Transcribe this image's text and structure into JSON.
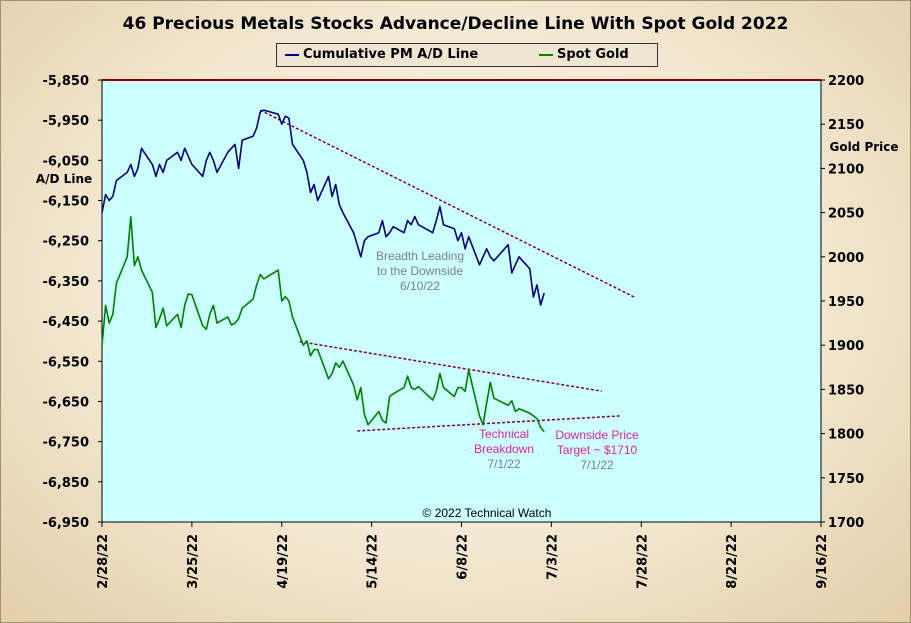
{
  "chart_data": {
    "type": "line",
    "title": "46 Precious Metals Stocks Advance/Decline Line With Spot Gold 2022",
    "legend_position": "top-center",
    "grid": false,
    "x_tick_labels": [
      "2/28/22",
      "3/25/22",
      "4/19/22",
      "5/14/22",
      "6/8/22",
      "7/3/22",
      "7/28/22",
      "8/22/22",
      "9/16/22"
    ],
    "x_range": [
      "2022-02-28",
      "2022-09-16"
    ],
    "y_left": {
      "label": "A/D Line",
      "range": [
        -6950,
        -5850
      ],
      "ticks": [
        "-5,850",
        "-5,950",
        "-6,050",
        "-6,150",
        "-6,250",
        "-6,350",
        "-6,450",
        "-6,550",
        "-6,650",
        "-6,750",
        "-6,850",
        "-6,950"
      ]
    },
    "y_right": {
      "label": "Gold Price",
      "range": [
        1700,
        2200
      ],
      "ticks": [
        "2200",
        "2150",
        "2100",
        "2050",
        "2000",
        "1950",
        "1900",
        "1850",
        "1800",
        "1750",
        "1700"
      ]
    },
    "series": [
      {
        "name": "Cumulative PM A/D Line",
        "axis": "left",
        "color": "#000080",
        "points": [
          [
            "2022-02-28",
            -6180
          ],
          [
            "2022-03-01",
            -6135
          ],
          [
            "2022-03-02",
            -6150
          ],
          [
            "2022-03-03",
            -6140
          ],
          [
            "2022-03-04",
            -6100
          ],
          [
            "2022-03-07",
            -6080
          ],
          [
            "2022-03-08",
            -6060
          ],
          [
            "2022-03-09",
            -6090
          ],
          [
            "2022-03-10",
            -6070
          ],
          [
            "2022-03-11",
            -6020
          ],
          [
            "2022-03-14",
            -6060
          ],
          [
            "2022-03-15",
            -6090
          ],
          [
            "2022-03-16",
            -6060
          ],
          [
            "2022-03-17",
            -6080
          ],
          [
            "2022-03-18",
            -6050
          ],
          [
            "2022-03-21",
            -6030
          ],
          [
            "2022-03-22",
            -6050
          ],
          [
            "2022-03-23",
            -6020
          ],
          [
            "2022-03-24",
            -6040
          ],
          [
            "2022-03-25",
            -6060
          ],
          [
            "2022-03-28",
            -6090
          ],
          [
            "2022-03-29",
            -6050
          ],
          [
            "2022-03-30",
            -6030
          ],
          [
            "2022-03-31",
            -6050
          ],
          [
            "2022-04-01",
            -6080
          ],
          [
            "2022-04-04",
            -6030
          ],
          [
            "2022-04-05",
            -6020
          ],
          [
            "2022-04-06",
            -6010
          ],
          [
            "2022-04-07",
            -6070
          ],
          [
            "2022-04-08",
            -6000
          ],
          [
            "2022-04-11",
            -5990
          ],
          [
            "2022-04-12",
            -5970
          ],
          [
            "2022-04-13",
            -5930
          ],
          [
            "2022-04-14",
            -5925
          ],
          [
            "2022-04-18",
            -5935
          ],
          [
            "2022-04-19",
            -5960
          ],
          [
            "2022-04-20",
            -5940
          ],
          [
            "2022-04-21",
            -5945
          ],
          [
            "2022-04-22",
            -6010
          ],
          [
            "2022-04-25",
            -6050
          ],
          [
            "2022-04-26",
            -6080
          ],
          [
            "2022-04-27",
            -6130
          ],
          [
            "2022-04-28",
            -6110
          ],
          [
            "2022-04-29",
            -6150
          ],
          [
            "2022-05-02",
            -6090
          ],
          [
            "2022-05-03",
            -6140
          ],
          [
            "2022-05-04",
            -6110
          ],
          [
            "2022-05-05",
            -6160
          ],
          [
            "2022-05-06",
            -6180
          ],
          [
            "2022-05-09",
            -6230
          ],
          [
            "2022-05-10",
            -6260
          ],
          [
            "2022-05-11",
            -6290
          ],
          [
            "2022-05-12",
            -6250
          ],
          [
            "2022-05-13",
            -6240
          ],
          [
            "2022-05-16",
            -6230
          ],
          [
            "2022-05-17",
            -6200
          ],
          [
            "2022-05-18",
            -6240
          ],
          [
            "2022-05-19",
            -6230
          ],
          [
            "2022-05-20",
            -6215
          ],
          [
            "2022-05-23",
            -6230
          ],
          [
            "2022-05-24",
            -6200
          ],
          [
            "2022-05-25",
            -6210
          ],
          [
            "2022-05-26",
            -6190
          ],
          [
            "2022-05-27",
            -6210
          ],
          [
            "2022-05-31",
            -6230
          ],
          [
            "2022-06-01",
            -6200
          ],
          [
            "2022-06-02",
            -6165
          ],
          [
            "2022-06-03",
            -6210
          ],
          [
            "2022-06-06",
            -6220
          ],
          [
            "2022-06-07",
            -6250
          ],
          [
            "2022-06-08",
            -6230
          ],
          [
            "2022-06-09",
            -6270
          ],
          [
            "2022-06-10",
            -6240
          ],
          [
            "2022-06-13",
            -6310
          ],
          [
            "2022-06-14",
            -6290
          ],
          [
            "2022-06-15",
            -6270
          ],
          [
            "2022-06-16",
            -6290
          ],
          [
            "2022-06-17",
            -6300
          ],
          [
            "2022-06-21",
            -6260
          ],
          [
            "2022-06-22",
            -6330
          ],
          [
            "2022-06-23",
            -6310
          ],
          [
            "2022-06-24",
            -6290
          ],
          [
            "2022-06-27",
            -6320
          ],
          [
            "2022-06-28",
            -6390
          ],
          [
            "2022-06-29",
            -6360
          ],
          [
            "2022-06-30",
            -6410
          ],
          [
            "2022-07-01",
            -6380
          ]
        ]
      },
      {
        "name": "Spot Gold",
        "axis": "right",
        "color": "#008000",
        "points": [
          [
            "2022-02-28",
            1900
          ],
          [
            "2022-03-01",
            1945
          ],
          [
            "2022-03-02",
            1925
          ],
          [
            "2022-03-03",
            1935
          ],
          [
            "2022-03-04",
            1970
          ],
          [
            "2022-03-07",
            2000
          ],
          [
            "2022-03-08",
            2045
          ],
          [
            "2022-03-09",
            1990
          ],
          [
            "2022-03-10",
            2000
          ],
          [
            "2022-03-11",
            1985
          ],
          [
            "2022-03-14",
            1960
          ],
          [
            "2022-03-15",
            1920
          ],
          [
            "2022-03-16",
            1930
          ],
          [
            "2022-03-17",
            1942
          ],
          [
            "2022-03-18",
            1922
          ],
          [
            "2022-03-21",
            1935
          ],
          [
            "2022-03-22",
            1920
          ],
          [
            "2022-03-23",
            1945
          ],
          [
            "2022-03-24",
            1958
          ],
          [
            "2022-03-25",
            1957
          ],
          [
            "2022-03-28",
            1922
          ],
          [
            "2022-03-29",
            1918
          ],
          [
            "2022-03-30",
            1935
          ],
          [
            "2022-03-31",
            1945
          ],
          [
            "2022-04-01",
            1925
          ],
          [
            "2022-04-04",
            1932
          ],
          [
            "2022-04-05",
            1923
          ],
          [
            "2022-04-06",
            1925
          ],
          [
            "2022-04-07",
            1930
          ],
          [
            "2022-04-08",
            1942
          ],
          [
            "2022-04-11",
            1952
          ],
          [
            "2022-04-12",
            1968
          ],
          [
            "2022-04-13",
            1980
          ],
          [
            "2022-04-14",
            1975
          ],
          [
            "2022-04-18",
            1985
          ],
          [
            "2022-04-19",
            1950
          ],
          [
            "2022-04-20",
            1955
          ],
          [
            "2022-04-21",
            1950
          ],
          [
            "2022-04-22",
            1932
          ],
          [
            "2022-04-25",
            1900
          ],
          [
            "2022-04-26",
            1905
          ],
          [
            "2022-04-27",
            1888
          ],
          [
            "2022-04-28",
            1895
          ],
          [
            "2022-04-29",
            1895
          ],
          [
            "2022-05-02",
            1862
          ],
          [
            "2022-05-03",
            1868
          ],
          [
            "2022-05-04",
            1880
          ],
          [
            "2022-05-05",
            1875
          ],
          [
            "2022-05-06",
            1882
          ],
          [
            "2022-05-09",
            1855
          ],
          [
            "2022-05-10",
            1838
          ],
          [
            "2022-05-11",
            1852
          ],
          [
            "2022-05-12",
            1822
          ],
          [
            "2022-05-13",
            1810
          ],
          [
            "2022-05-16",
            1825
          ],
          [
            "2022-05-17",
            1815
          ],
          [
            "2022-05-18",
            1812
          ],
          [
            "2022-05-19",
            1842
          ],
          [
            "2022-05-20",
            1845
          ],
          [
            "2022-05-23",
            1852
          ],
          [
            "2022-05-24",
            1865
          ],
          [
            "2022-05-25",
            1852
          ],
          [
            "2022-05-26",
            1850
          ],
          [
            "2022-05-27",
            1853
          ],
          [
            "2022-05-31",
            1838
          ],
          [
            "2022-06-01",
            1848
          ],
          [
            "2022-06-02",
            1868
          ],
          [
            "2022-06-03",
            1852
          ],
          [
            "2022-06-06",
            1842
          ],
          [
            "2022-06-07",
            1852
          ],
          [
            "2022-06-08",
            1852
          ],
          [
            "2022-06-09",
            1848
          ],
          [
            "2022-06-10",
            1872
          ],
          [
            "2022-06-13",
            1820
          ],
          [
            "2022-06-14",
            1810
          ],
          [
            "2022-06-15",
            1835
          ],
          [
            "2022-06-16",
            1858
          ],
          [
            "2022-06-17",
            1840
          ],
          [
            "2022-06-21",
            1832
          ],
          [
            "2022-06-22",
            1837
          ],
          [
            "2022-06-23",
            1825
          ],
          [
            "2022-06-24",
            1828
          ],
          [
            "2022-06-27",
            1823
          ],
          [
            "2022-06-28",
            1820
          ],
          [
            "2022-06-29",
            1817
          ],
          [
            "2022-06-30",
            1807
          ],
          [
            "2022-07-01",
            1802
          ]
        ]
      }
    ],
    "trendlines": [
      {
        "axis": "left",
        "from": [
          "2022-04-13",
          -5925
        ],
        "to": [
          "2022-07-26",
          -6390
        ]
      },
      {
        "axis": "right",
        "from": [
          "2022-04-24",
          1904
        ],
        "to": [
          "2022-07-17",
          1848
        ]
      },
      {
        "axis": "right",
        "from": [
          "2022-05-10",
          1803
        ],
        "to": [
          "2022-07-22",
          1820
        ]
      }
    ],
    "annotations": [
      {
        "lines": [
          "Breadth Leading",
          "to the Downside",
          "6/10/22"
        ],
        "color": "#808080"
      },
      {
        "lines": [
          "Technical",
          "Breakdown",
          "7/1/22"
        ],
        "colors": [
          "#e020b0",
          "#e020b0",
          "#808080"
        ]
      },
      {
        "lines": [
          "Downside Price",
          "Target ~ $1710",
          "7/1/22"
        ],
        "colors": [
          "#e020b0",
          "#e020b0",
          "#808080"
        ]
      }
    ],
    "copyright": "© 2022 Technical Watch"
  }
}
